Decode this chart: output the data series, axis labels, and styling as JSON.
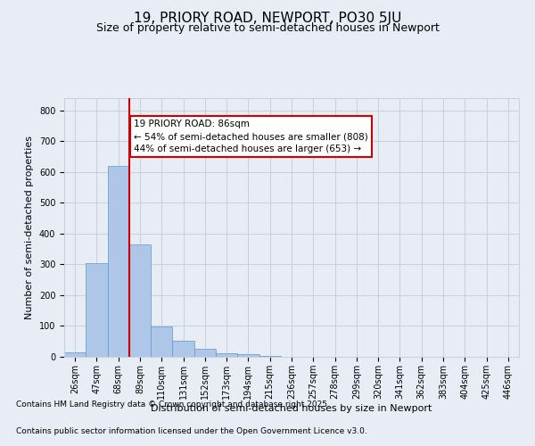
{
  "title1": "19, PRIORY ROAD, NEWPORT, PO30 5JU",
  "title2": "Size of property relative to semi-detached houses in Newport",
  "xlabel": "Distribution of semi-detached houses by size in Newport",
  "ylabel": "Number of semi-detached properties",
  "categories": [
    "26sqm",
    "47sqm",
    "68sqm",
    "89sqm",
    "110sqm",
    "131sqm",
    "152sqm",
    "173sqm",
    "194sqm",
    "215sqm",
    "236sqm",
    "257sqm",
    "278sqm",
    "299sqm",
    "320sqm",
    "341sqm",
    "362sqm",
    "383sqm",
    "404sqm",
    "425sqm",
    "446sqm"
  ],
  "values": [
    15,
    305,
    620,
    365,
    98,
    52,
    25,
    12,
    10,
    4,
    0,
    0,
    0,
    0,
    0,
    0,
    0,
    0,
    0,
    0,
    0
  ],
  "bar_color": "#aec6e8",
  "bar_edge_color": "#5a9ac9",
  "property_line_x": 2.5,
  "property_size": "86sqm",
  "pct_smaller": 54,
  "count_smaller": 808,
  "pct_larger": 44,
  "count_larger": 653,
  "annotation_box_color": "#ffffff",
  "annotation_box_edge": "#cc0000",
  "line_color": "#cc0000",
  "grid_color": "#c8d0de",
  "background_color": "#e8ecf4",
  "plot_bg_color": "#e8ecf4",
  "ylim": [
    0,
    840
  ],
  "yticks": [
    0,
    100,
    200,
    300,
    400,
    500,
    600,
    700,
    800
  ],
  "footer1": "Contains HM Land Registry data © Crown copyright and database right 2025.",
  "footer2": "Contains public sector information licensed under the Open Government Licence v3.0.",
  "title1_fontsize": 11,
  "title2_fontsize": 9,
  "axis_label_fontsize": 8,
  "tick_fontsize": 7,
  "annotation_fontsize": 7.5,
  "footer_fontsize": 6.5
}
